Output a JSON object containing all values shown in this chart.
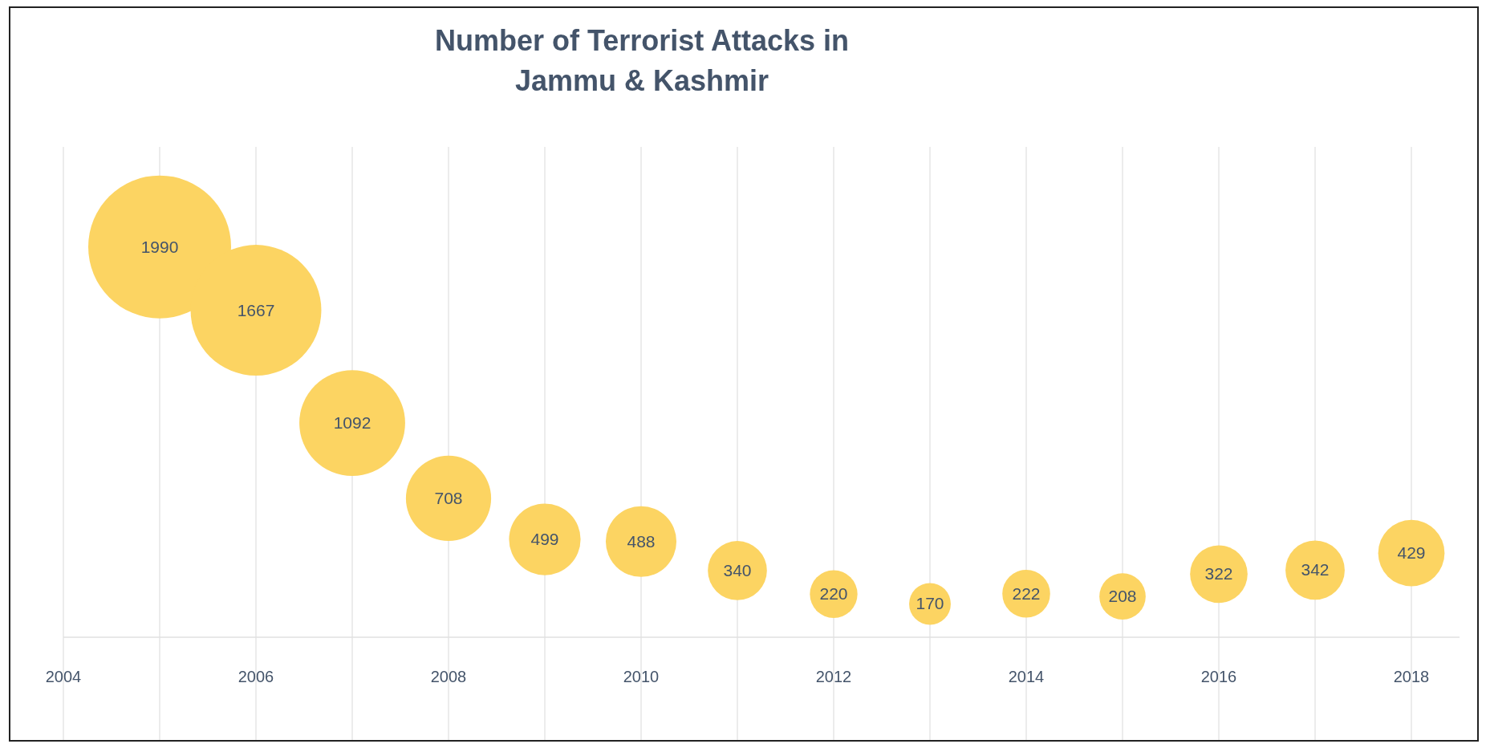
{
  "chart_data": {
    "type": "bubble",
    "title": "Number of Terrorist Attacks in\nJammu & Kashmir",
    "x": [
      2005,
      2006,
      2007,
      2008,
      2009,
      2010,
      2011,
      2012,
      2013,
      2014,
      2015,
      2016,
      2017,
      2018
    ],
    "values": [
      1990,
      1667,
      1092,
      708,
      499,
      488,
      340,
      220,
      170,
      222,
      208,
      322,
      342,
      429
    ],
    "sizes": [
      1,
      0.838,
      0.549,
      0.356,
      0.251,
      0.245,
      0.171,
      0.111,
      0.085,
      0.112,
      0.105,
      0.162,
      0.172,
      0.216
    ],
    "color": "#fcd462",
    "xlim": [
      2004,
      2018.5
    ],
    "xticks": [
      2004,
      {
        "value": 2005,
        "label": null
      },
      2006,
      {
        "value": 2007,
        "label": null
      },
      2008,
      {
        "value": 2009,
        "label": null
      },
      2010,
      {
        "value": 2011,
        "label": null
      },
      2012,
      {
        "value": 2013,
        "label": null
      },
      2014,
      {
        "value": 2015,
        "label": null
      },
      2016,
      {
        "value": 2017,
        "label": null
      },
      2018
    ],
    "ylim": [
      0,
      2500
    ],
    "grid": "x",
    "data_labels": true,
    "tick_labels": "x"
  }
}
